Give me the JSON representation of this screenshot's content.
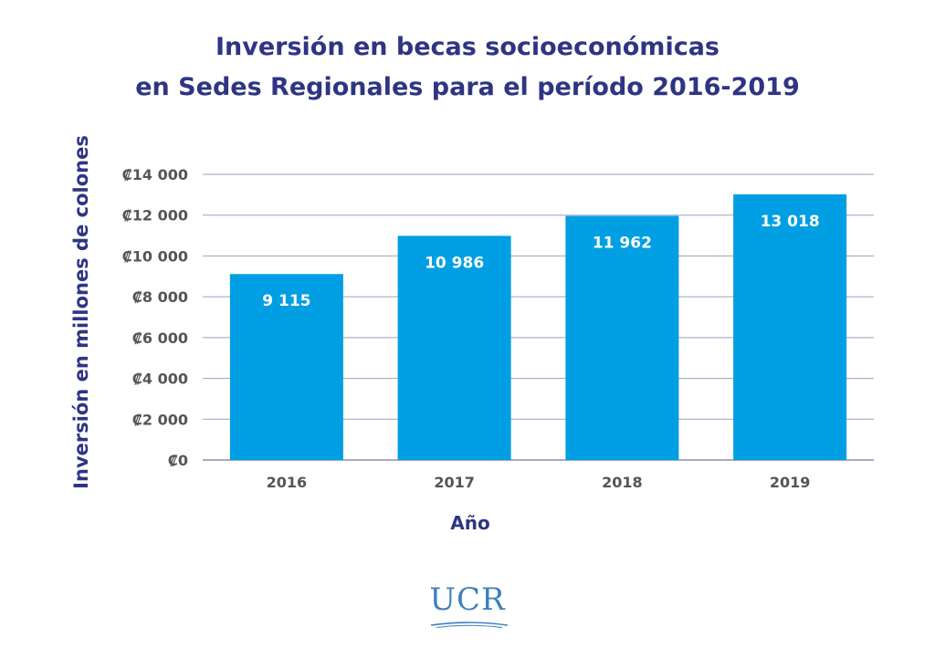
{
  "chart_data": {
    "type": "bar",
    "title_lines": [
      "Inversión en becas socioeconómicas",
      "en Sedes Regionales para el período 2016-2019"
    ],
    "xlabel": "Año",
    "ylabel": "Inversión en millones de colones",
    "categories": [
      "2016",
      "2017",
      "2018",
      "2019"
    ],
    "values": [
      9115,
      10986,
      11962,
      13018
    ],
    "value_labels": [
      "9 115",
      "10 986",
      "11 962",
      "13 018"
    ],
    "ylim": [
      0,
      14000
    ],
    "yticks": [
      0,
      2000,
      4000,
      6000,
      8000,
      10000,
      12000,
      14000
    ],
    "ytick_labels": [
      "₡0",
      "₡2 000",
      "₡4 000",
      "₡6 000",
      "₡8 000",
      "₡10 000",
      "₡12 000",
      "₡14 000"
    ],
    "grid": true,
    "legend": "none",
    "bar_color": "#009fe3",
    "title_color": "#2e3583",
    "tick_color": "#555555"
  },
  "logo": {
    "text": "UCR",
    "color": "#3d7fbf"
  }
}
